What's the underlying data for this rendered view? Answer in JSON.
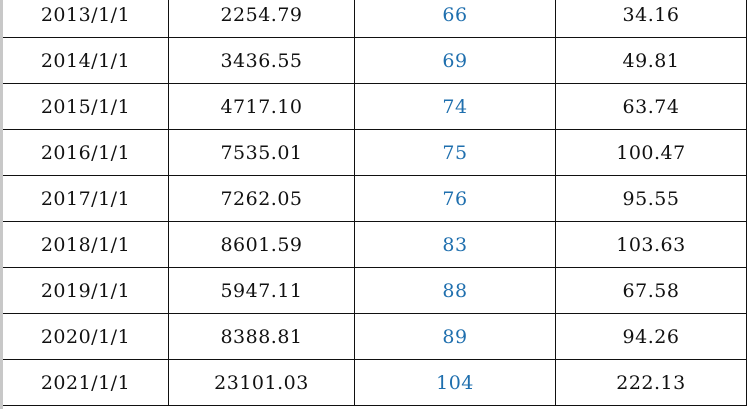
{
  "table": {
    "rows": [
      [
        "2013/1/1",
        "2254.79",
        "66",
        "34.16"
      ],
      [
        "2014/1/1",
        "3436.55",
        "69",
        "49.81"
      ],
      [
        "2015/1/1",
        "4717.10",
        "74",
        "63.74"
      ],
      [
        "2016/1/1",
        "7535.01",
        "75",
        "100.47"
      ],
      [
        "2017/1/1",
        "7262.05",
        "76",
        "95.55"
      ],
      [
        "2018/1/1",
        "8601.59",
        "83",
        "103.63"
      ],
      [
        "2019/1/1",
        "5947.11",
        "88",
        "67.58"
      ],
      [
        "2020/1/1",
        "8388.81",
        "89",
        "94.26"
      ],
      [
        "2021/1/1",
        "23101.03",
        "104",
        "222.13"
      ]
    ]
  },
  "colors": {
    "highlight_text": "#1f6fae",
    "text": "#111111",
    "grid": "#111111"
  }
}
